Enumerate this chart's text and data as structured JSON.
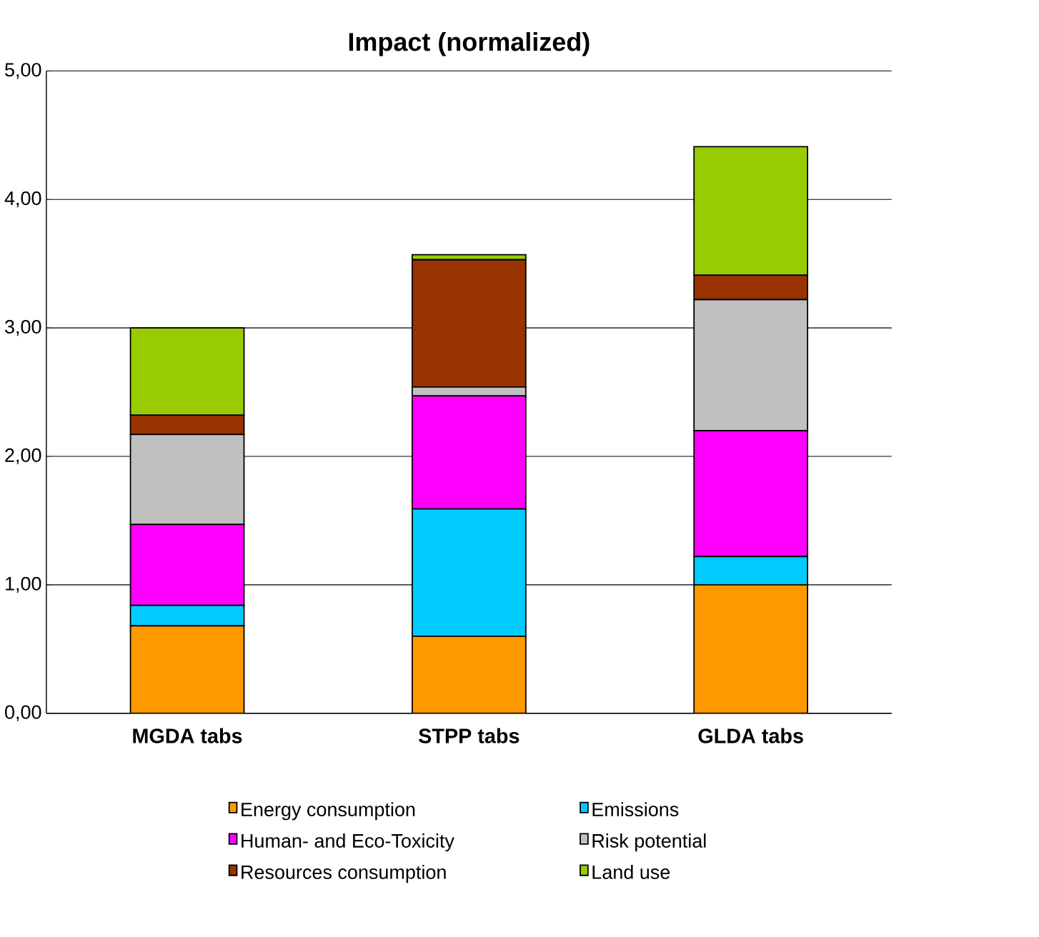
{
  "chart_data": {
    "type": "bar",
    "title": "Impact (normalized)",
    "stacked": true,
    "categories": [
      "MGDA tabs",
      "STPP tabs",
      "GLDA tabs"
    ],
    "series": [
      {
        "name": "Energy consumption",
        "color": "#ff9900",
        "values": [
          0.68,
          0.6,
          1.0
        ]
      },
      {
        "name": "Emissions",
        "color": "#00ccff",
        "values": [
          0.16,
          0.99,
          0.22
        ]
      },
      {
        "name": "Human- and Eco-Toxicity",
        "color": "#ff00ff",
        "values": [
          0.63,
          0.88,
          0.98
        ]
      },
      {
        "name": "Risk potential",
        "color": "#c0c0c0",
        "values": [
          0.7,
          0.07,
          1.02
        ]
      },
      {
        "name": "Resources consumption",
        "color": "#993300",
        "values": [
          0.15,
          0.99,
          0.19
        ]
      },
      {
        "name": "Land use",
        "color": "#99cc00",
        "values": [
          0.68,
          0.04,
          1.0
        ]
      }
    ],
    "ylim": [
      0,
      5
    ],
    "yticks": [
      {
        "value": 0,
        "label": "0,00"
      },
      {
        "value": 1,
        "label": "1,00"
      },
      {
        "value": 2,
        "label": "2,00"
      },
      {
        "value": 3,
        "label": "3,00"
      },
      {
        "value": 4,
        "label": "4,00"
      },
      {
        "value": 5,
        "label": "5,00"
      }
    ],
    "grid": "y",
    "legend": "bottom"
  }
}
